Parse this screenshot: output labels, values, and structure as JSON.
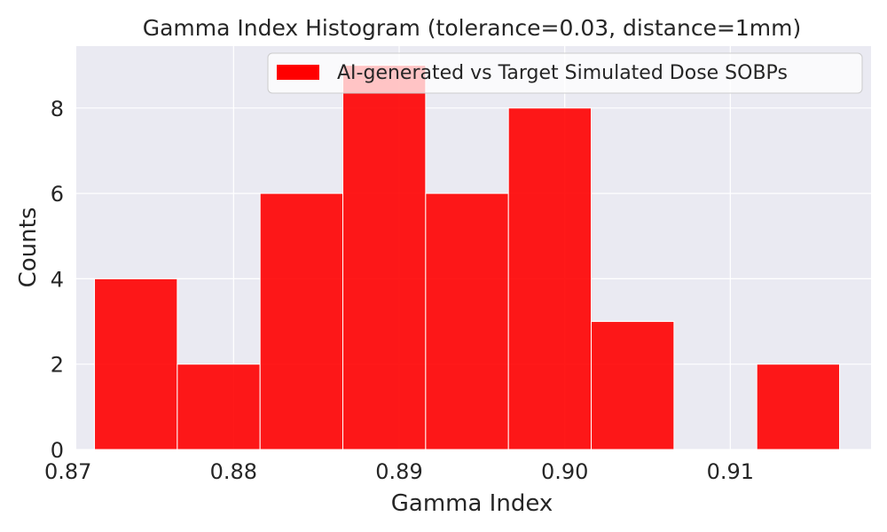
{
  "chart_data": {
    "type": "bar",
    "title": "Gamma Index Histogram (tolerance=0.03, distance=1mm)",
    "xlabel": "Gamma Index",
    "ylabel": "Counts",
    "xlim": [
      0.8705,
      0.9185
    ],
    "ylim": [
      0,
      9.45
    ],
    "x_ticks": [
      0.87,
      0.88,
      0.89,
      0.9,
      0.91
    ],
    "x_tick_labels": [
      "0.87",
      "0.88",
      "0.89",
      "0.90",
      "0.91"
    ],
    "y_ticks": [
      0,
      2,
      4,
      6,
      8
    ],
    "y_tick_labels": [
      "0",
      "2",
      "4",
      "6",
      "8"
    ],
    "grid": true,
    "legend_position": "top-right",
    "series": [
      {
        "name": "AI-generated vs Target Simulated Dose SOBPs",
        "color": "#ff0000",
        "bins": [
          {
            "x0": 0.8716,
            "x1": 0.8766,
            "value": 4
          },
          {
            "x0": 0.8766,
            "x1": 0.8816,
            "value": 2
          },
          {
            "x0": 0.8816,
            "x1": 0.8866,
            "value": 6
          },
          {
            "x0": 0.8866,
            "x1": 0.8916,
            "value": 9
          },
          {
            "x0": 0.8916,
            "x1": 0.8966,
            "value": 6
          },
          {
            "x0": 0.8966,
            "x1": 0.9016,
            "value": 8
          },
          {
            "x0": 0.9016,
            "x1": 0.9066,
            "value": 3
          },
          {
            "x0": 0.9066,
            "x1": 0.9116,
            "value": 0
          },
          {
            "x0": 0.9116,
            "x1": 0.9166,
            "value": 2
          }
        ]
      }
    ]
  },
  "colors": {
    "plot_background": "#eaeaf2",
    "grid": "#ffffff",
    "bar_fill": "#ff0000",
    "text": "#262626"
  }
}
